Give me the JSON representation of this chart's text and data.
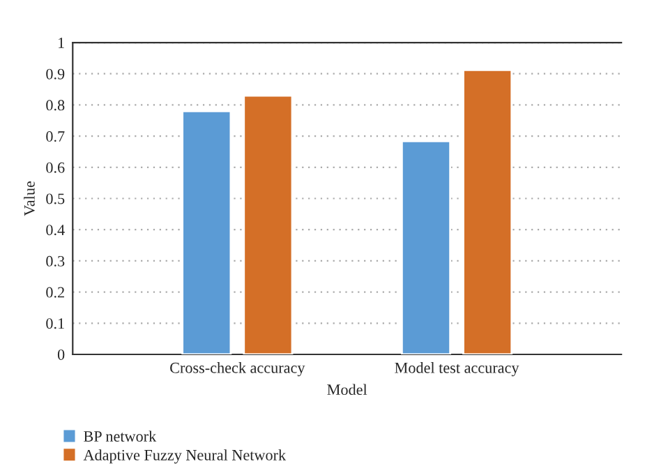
{
  "chart_data": {
    "type": "bar",
    "xlabel": "Model",
    "ylabel": "Value",
    "categories": [
      "Cross-check accuracy",
      "Model test accuracy"
    ],
    "series": [
      {
        "name": "BP network",
        "color": "#5b9bd5",
        "values": [
          0.78,
          0.684
        ]
      },
      {
        "name": "Adaptive Fuzzy Neural Network",
        "color": "#d46f27",
        "values": [
          0.83,
          0.912
        ]
      }
    ],
    "ylim": [
      0,
      1
    ],
    "yticks": [
      0,
      0.1,
      0.2,
      0.3,
      0.4,
      0.5,
      0.6,
      0.7,
      0.8,
      0.9,
      1
    ],
    "grid": "y",
    "legend": "bottom left"
  }
}
